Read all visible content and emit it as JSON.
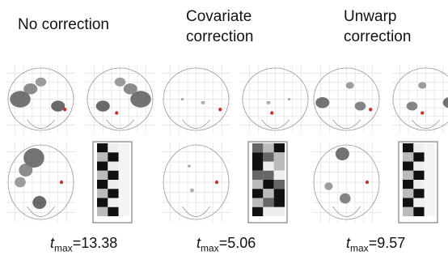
{
  "panels": [
    {
      "title": "No correction",
      "stat": "t",
      "stat_sub": "max",
      "stat_value": "=13.38"
    },
    {
      "title": "Covariate correction",
      "stat": "t",
      "stat_sub": "max",
      "stat_value": "=5.06"
    },
    {
      "title": "Unwarp correction",
      "stat": "t",
      "stat_sub": "max",
      "stat_value": "=9.57"
    }
  ]
}
